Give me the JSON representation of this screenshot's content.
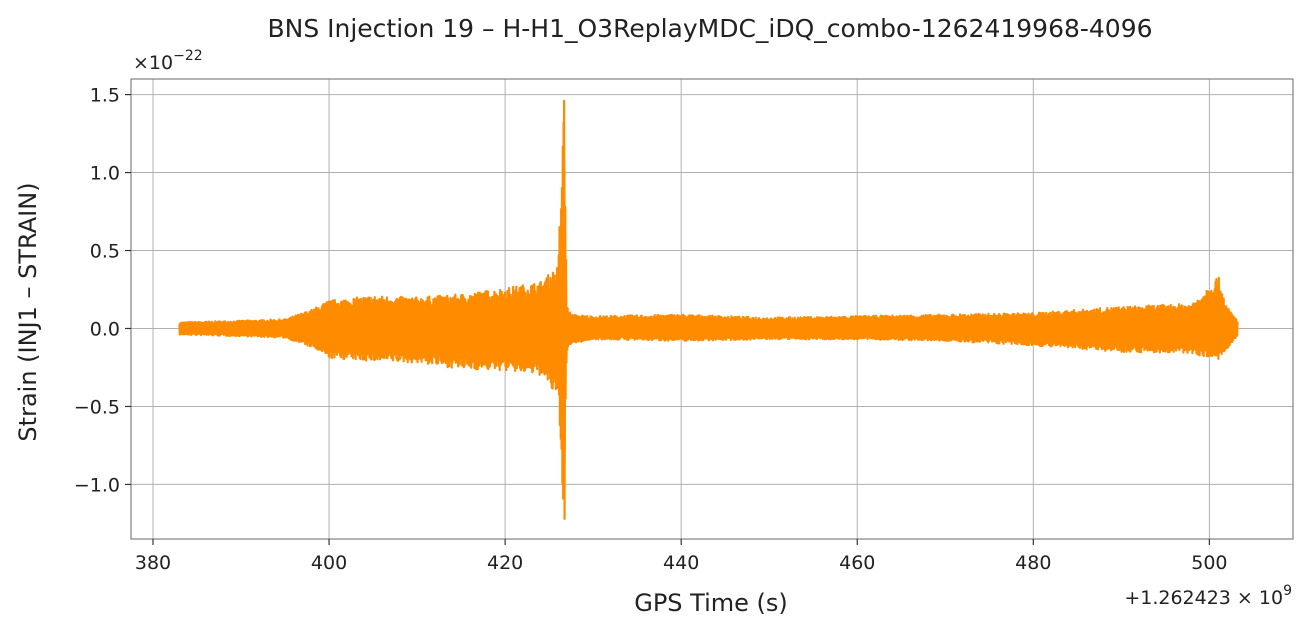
{
  "chart_data": {
    "type": "line",
    "title": "BNS Injection 19 – H-H1_O3ReplayMDC_iDQ_combo-1262419968-4096",
    "xlabel": "GPS Time (s)",
    "ylabel": "Strain (INJ1 – STRAIN)",
    "y_multiplier": "×10^-22",
    "x_offset": "+1.262423 × 10^9",
    "xlim": [
      377.5,
      509.5
    ],
    "ylim": [
      -1.35,
      1.6
    ],
    "x_ticks": [
      380,
      400,
      420,
      440,
      460,
      480,
      500
    ],
    "y_ticks": [
      -1.0,
      -0.5,
      0.0,
      0.5,
      1.0,
      1.5
    ],
    "grid": true,
    "line_color": "#ff8c00",
    "series": [
      {
        "values_note": "",
        "x": [
          383.0,
          390.0,
          395.0,
          398.0,
          400.0,
          405.0,
          410.0,
          415.0,
          420.0,
          424.0,
          426.0,
          426.7,
          427.0,
          427.5,
          430.0,
          440.0,
          450.0,
          460.0,
          470.0,
          480.0,
          490.0,
          498.0,
          501.0,
          502.0,
          503.2
        ],
        "upper": [
          0.04,
          0.05,
          0.06,
          0.12,
          0.18,
          0.21,
          0.2,
          0.22,
          0.26,
          0.3,
          0.4,
          1.46,
          0.15,
          0.09,
          0.08,
          0.09,
          0.07,
          0.08,
          0.09,
          0.1,
          0.14,
          0.16,
          0.34,
          0.14,
          0.05
        ],
        "lower": [
          -0.04,
          -0.05,
          -0.06,
          -0.12,
          -0.19,
          -0.21,
          -0.22,
          -0.26,
          -0.27,
          -0.3,
          -0.45,
          -1.22,
          -0.16,
          -0.1,
          -0.07,
          -0.08,
          -0.07,
          -0.07,
          -0.08,
          -0.11,
          -0.15,
          -0.16,
          -0.2,
          -0.14,
          -0.05
        ]
      }
    ]
  }
}
